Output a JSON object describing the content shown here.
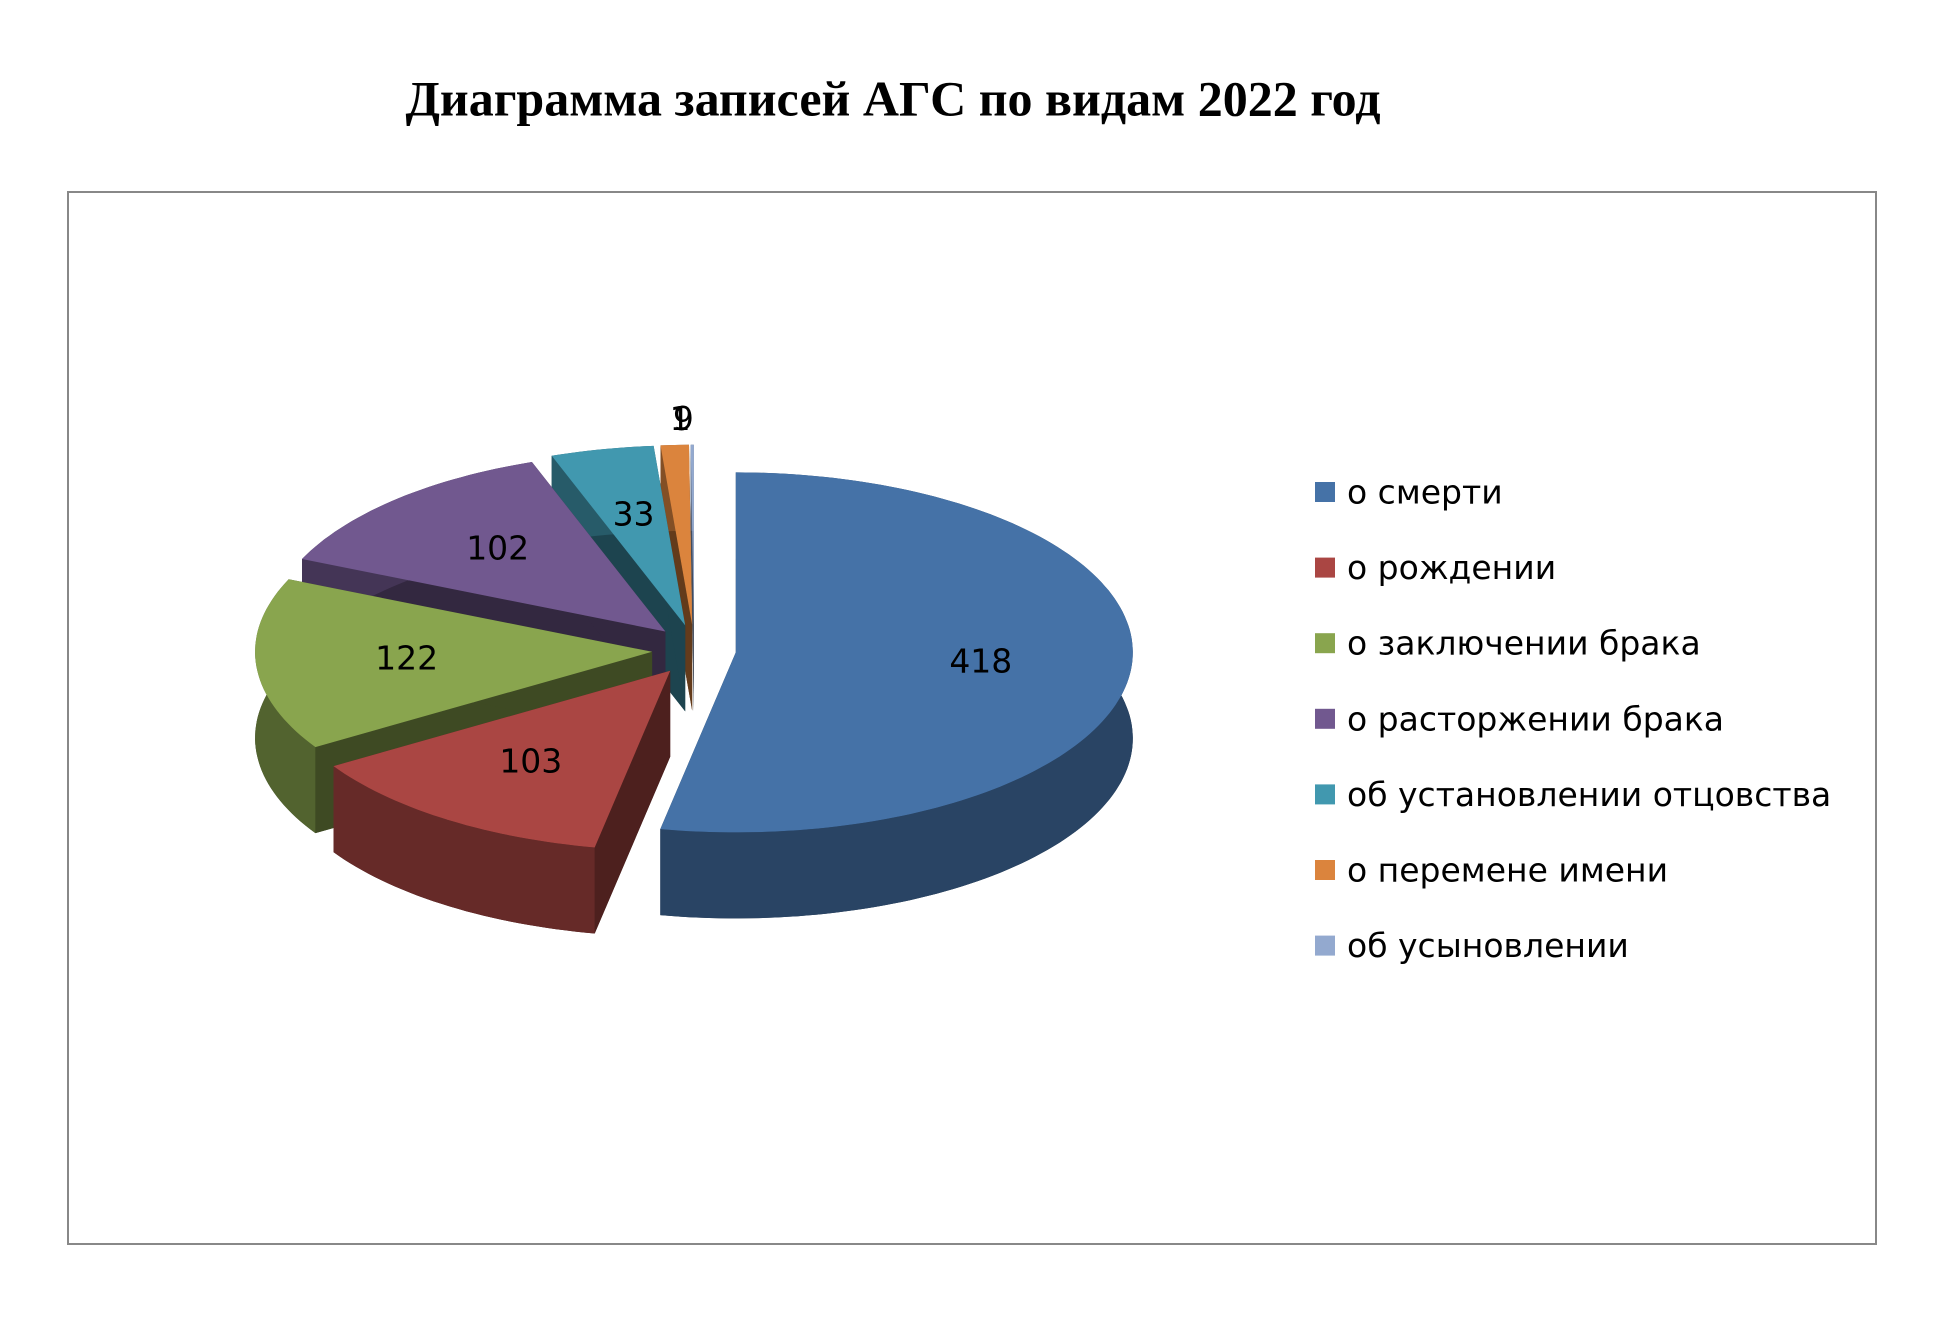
{
  "chart_data": {
    "type": "pie3d",
    "title": "Диаграмма записей АГС по видам 2022 год",
    "categories": [
      "о смерти",
      "о рождении",
      "о заключении брака",
      "о расторжении брака",
      "об установлении отцовства",
      "о перемене имени",
      "об усыновлении"
    ],
    "values": [
      418,
      103,
      122,
      102,
      33,
      9,
      1
    ],
    "colors": [
      "#4572a7",
      "#aa4643",
      "#89a54e",
      "#71588f",
      "#4198af",
      "#db843d",
      "#93a9cf"
    ],
    "legend": "right"
  }
}
